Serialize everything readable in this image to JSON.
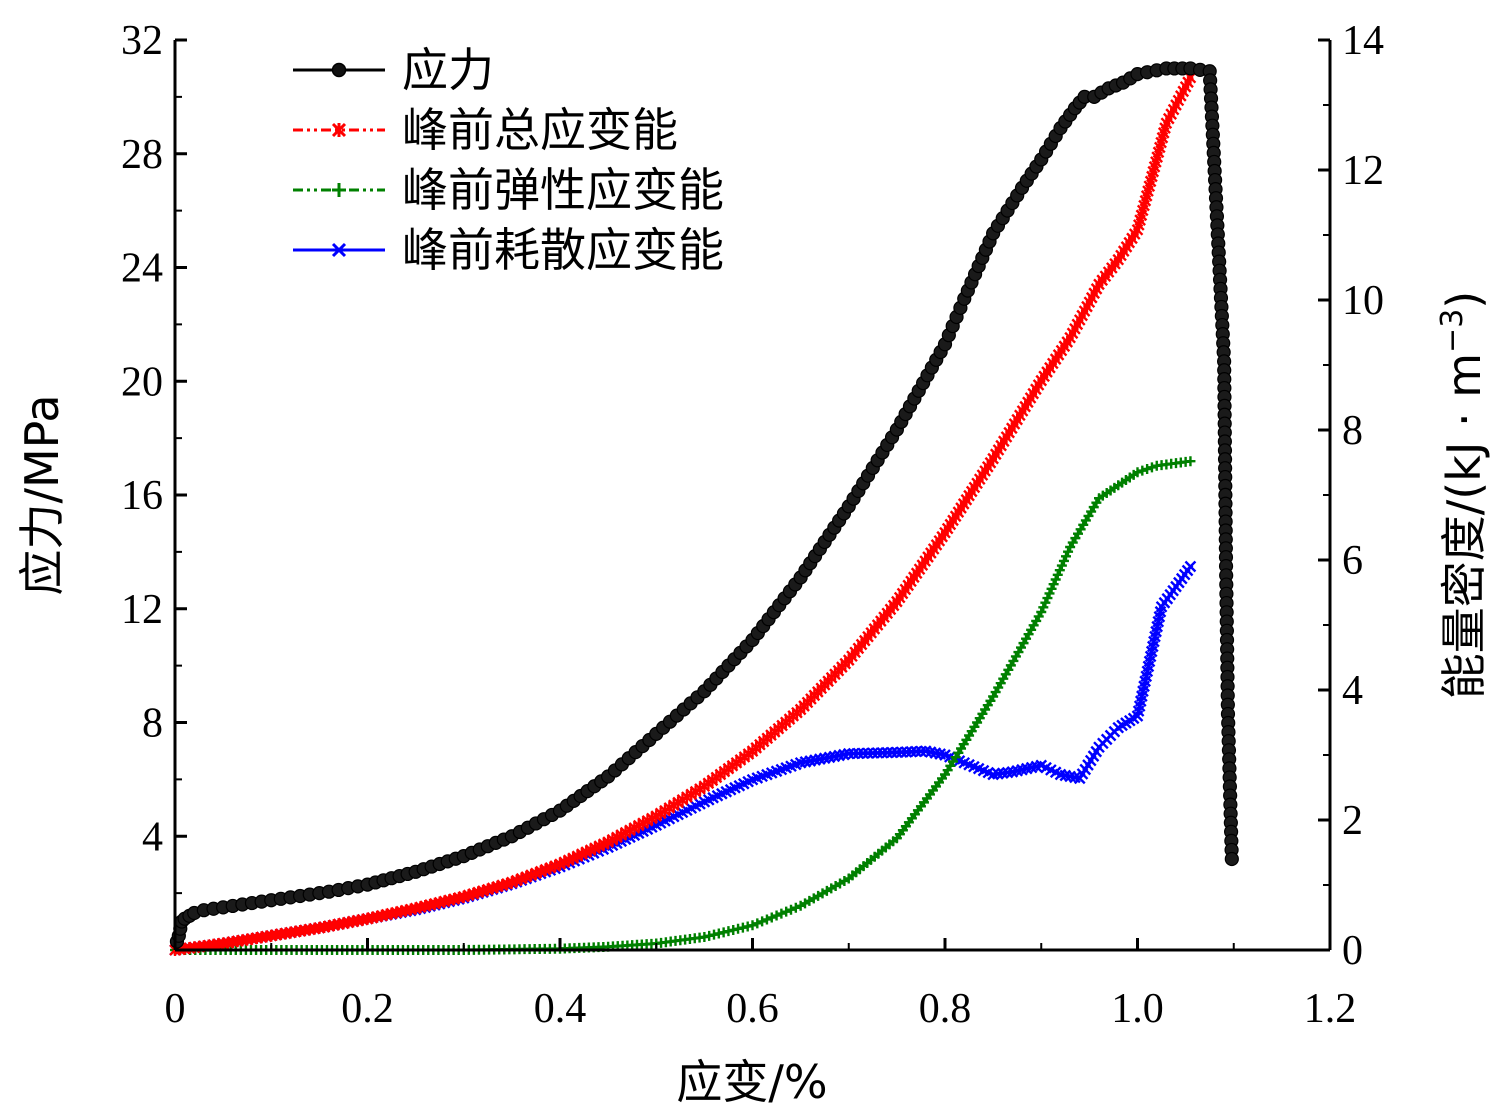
{
  "chart_data": {
    "type": "line",
    "xlabel": "应变/%",
    "ylabel": "应力/MPa",
    "ylabel_right": "能量密度/(kJ · m",
    "ylabel_right_sup": "−3",
    "xlim": [
      0,
      1.2
    ],
    "ylim": [
      0,
      32
    ],
    "ylim_right": [
      0,
      14
    ],
    "x_ticks": [
      "0",
      "0.2",
      "0.4",
      "0.6",
      "0.8",
      "1.0",
      "1.2"
    ],
    "y_ticks": [
      "4",
      "8",
      "12",
      "16",
      "20",
      "24",
      "28",
      "32"
    ],
    "y_right_ticks": [
      "0",
      "2",
      "4",
      "6",
      "8",
      "10",
      "12",
      "14"
    ],
    "legend_position": "top-left",
    "series": [
      {
        "name": "应力",
        "axis": "left",
        "color": "#000000",
        "marker": "circle",
        "x": [
          0.002,
          0.004,
          0.007,
          0.01,
          0.015,
          0.02,
          0.03,
          0.05,
          0.07,
          0.1,
          0.13,
          0.16,
          0.2,
          0.25,
          0.3,
          0.35,
          0.4,
          0.45,
          0.5,
          0.55,
          0.6,
          0.65,
          0.7,
          0.75,
          0.8,
          0.82,
          0.85,
          0.88,
          0.9,
          0.92,
          0.935,
          0.945,
          0.955,
          0.97,
          0.985,
          1.0,
          1.03,
          1.055,
          1.075,
          1.09,
          1.092,
          1.094,
          1.098
        ],
        "y": [
          0.3,
          0.5,
          1.0,
          1.1,
          1.2,
          1.3,
          1.4,
          1.5,
          1.6,
          1.75,
          1.9,
          2.05,
          2.3,
          2.75,
          3.3,
          4.0,
          4.9,
          6.1,
          7.6,
          9.1,
          10.9,
          13.1,
          15.6,
          18.3,
          21.3,
          22.9,
          25.2,
          26.8,
          27.8,
          28.9,
          29.6,
          30.0,
          30.0,
          30.3,
          30.5,
          30.8,
          31.0,
          31.0,
          30.9,
          20.7,
          13.5,
          8.3,
          3.2
        ]
      },
      {
        "name": "峰前总应变能",
        "axis": "right",
        "color": "#ff0000",
        "marker": "x-star",
        "x": [
          0,
          0.05,
          0.1,
          0.15,
          0.2,
          0.25,
          0.3,
          0.35,
          0.4,
          0.45,
          0.5,
          0.55,
          0.6,
          0.65,
          0.7,
          0.75,
          0.8,
          0.85,
          0.9,
          0.93,
          0.96,
          0.98,
          1.0,
          1.03,
          1.055
        ],
        "y": [
          0,
          0.1,
          0.22,
          0.34,
          0.48,
          0.64,
          0.82,
          1.04,
          1.32,
          1.66,
          2.06,
          2.52,
          3.06,
          3.7,
          4.46,
          5.36,
          6.42,
          7.56,
          8.76,
          9.42,
          10.24,
          10.62,
          11.08,
          12.72,
          13.42
        ]
      },
      {
        "name": "峰前弹性应变能",
        "axis": "right",
        "color": "#008000",
        "marker": "plus",
        "x": [
          0,
          0.1,
          0.2,
          0.3,
          0.4,
          0.45,
          0.5,
          0.55,
          0.6,
          0.65,
          0.7,
          0.75,
          0.8,
          0.85,
          0.9,
          0.93,
          0.96,
          0.98,
          1.0,
          1.02,
          1.055
        ],
        "y": [
          0,
          0,
          0,
          0,
          0.02,
          0.05,
          0.1,
          0.2,
          0.38,
          0.68,
          1.1,
          1.72,
          2.7,
          3.9,
          5.2,
          6.2,
          6.95,
          7.15,
          7.35,
          7.45,
          7.52
        ]
      },
      {
        "name": "峰前耗散应变能",
        "axis": "right",
        "color": "#0000ff",
        "marker": "cross",
        "x": [
          0,
          0.05,
          0.1,
          0.15,
          0.2,
          0.25,
          0.3,
          0.35,
          0.4,
          0.45,
          0.5,
          0.55,
          0.6,
          0.65,
          0.7,
          0.75,
          0.78,
          0.8,
          0.82,
          0.85,
          0.87,
          0.9,
          0.92,
          0.94,
          0.96,
          0.98,
          1.0,
          1.025,
          1.055
        ],
        "y": [
          0,
          0.1,
          0.22,
          0.34,
          0.48,
          0.62,
          0.8,
          1.02,
          1.28,
          1.58,
          1.92,
          2.28,
          2.62,
          2.88,
          3.02,
          3.04,
          3.06,
          3.0,
          2.88,
          2.7,
          2.74,
          2.84,
          2.7,
          2.64,
          3.12,
          3.42,
          3.6,
          5.28,
          5.9
        ]
      }
    ]
  }
}
